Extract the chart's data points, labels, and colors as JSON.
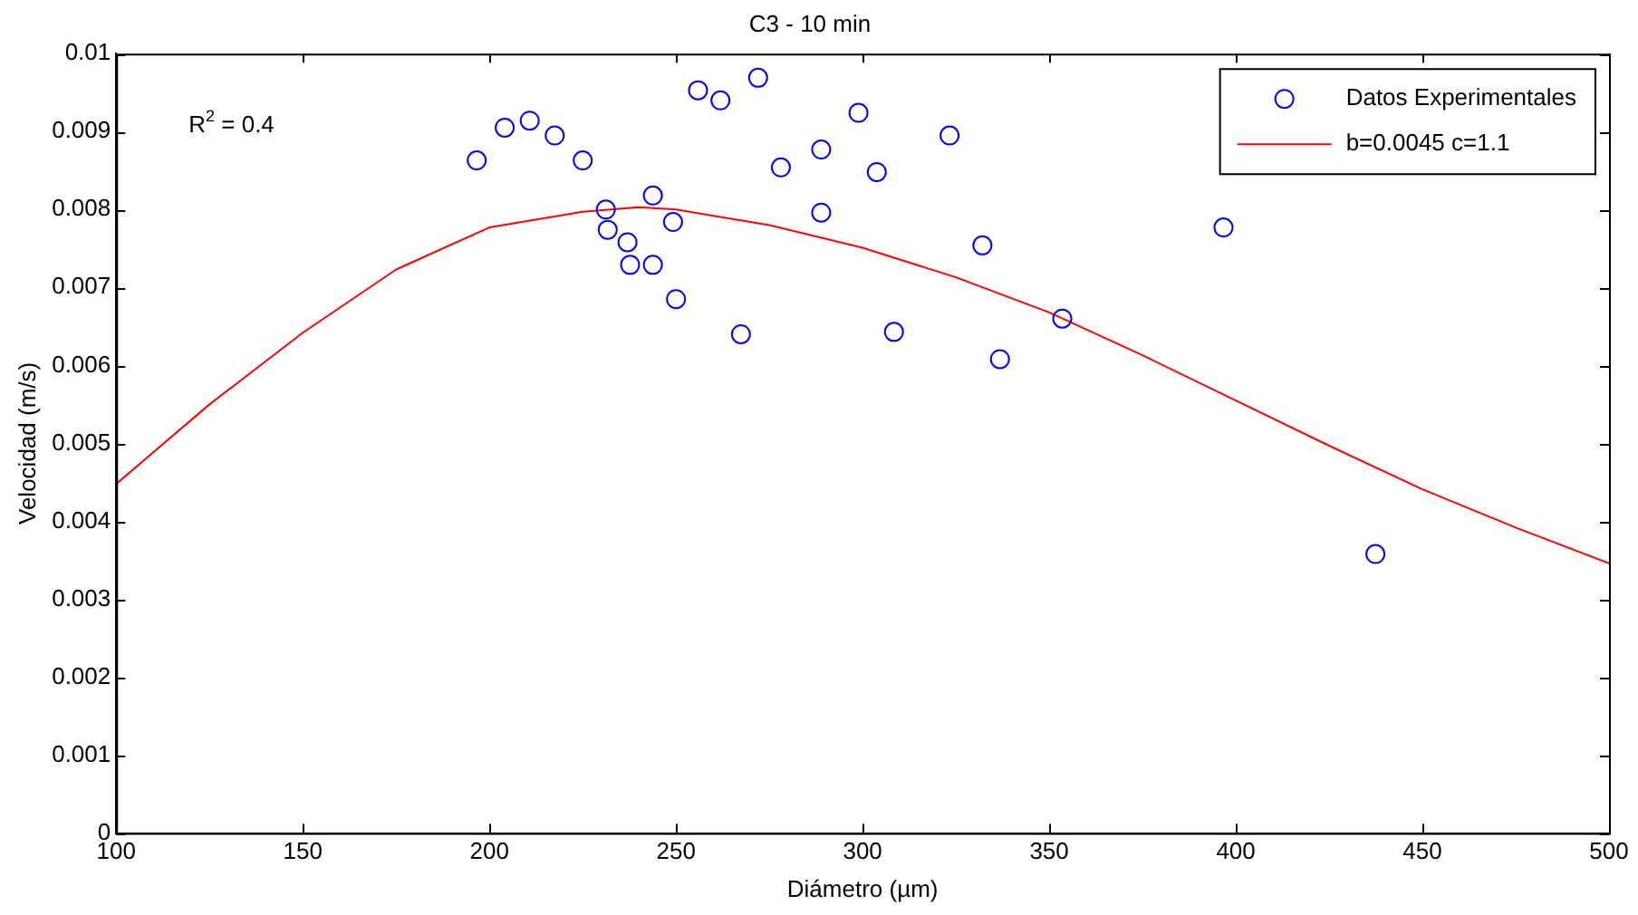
{
  "chart_data": {
    "type": "scatter",
    "title": "C3 - 10 min",
    "xlabel": "Diámetro (µm)",
    "ylabel": "Velocidad (m/s)",
    "xlim": [
      100,
      500
    ],
    "xticks": [
      100,
      150,
      200,
      250,
      300,
      350,
      400,
      450,
      500
    ],
    "ylim": [
      0,
      0.01
    ],
    "yticks": [
      0,
      0.001,
      0.002,
      0.003,
      0.004,
      0.005,
      0.006,
      0.007,
      0.008,
      0.009,
      0.01
    ],
    "legend": "top right",
    "marker": "circle",
    "annotations": [
      "R$^{2}$ = 0.4"
    ],
    "series": [
      {
        "name": "Datos Experimentales",
        "color": "#0000ff",
        "x": [
          196.6,
          204.1,
          210.8,
          217.5,
          225,
          231.2,
          231.7,
          237,
          237.7,
          243.8,
          243.8,
          249.2,
          250,
          255.9,
          261.9,
          267.4,
          272,
          278.1,
          288.9,
          288.9,
          298.9,
          303.8,
          308.4,
          323.3,
          332.1,
          336.8,
          353.5,
          396.7,
          437.4
        ],
        "values": [
          0.00863,
          0.00905,
          0.00914,
          0.00895,
          0.00863,
          0.008,
          0.00774,
          0.00758,
          0.00729,
          0.00729,
          0.00818,
          0.00784,
          0.00685,
          0.00953,
          0.0094,
          0.0064,
          0.00969,
          0.00854,
          0.00877,
          0.00796,
          0.00924,
          0.00848,
          0.00643,
          0.00895,
          0.00754,
          0.00608,
          0.0066,
          0.00777,
          0.00358
        ]
      },
      {
        "type": "line",
        "name": "b=0.0045 c=1.1",
        "color": "#ff0000",
        "marker": "none",
        "x": [
          100,
          125,
          150,
          175,
          200,
          225,
          240,
          250,
          275,
          300,
          325,
          350,
          375,
          400,
          425,
          450,
          475,
          500
        ],
        "values": [
          0.00448,
          0.0055,
          0.00642,
          0.00723,
          0.00777,
          0.00797,
          0.00803,
          0.008,
          0.0078,
          0.00751,
          0.00713,
          0.00668,
          0.00613,
          0.00555,
          0.00497,
          0.00441,
          0.00392,
          0.00346
        ]
      }
    ]
  }
}
